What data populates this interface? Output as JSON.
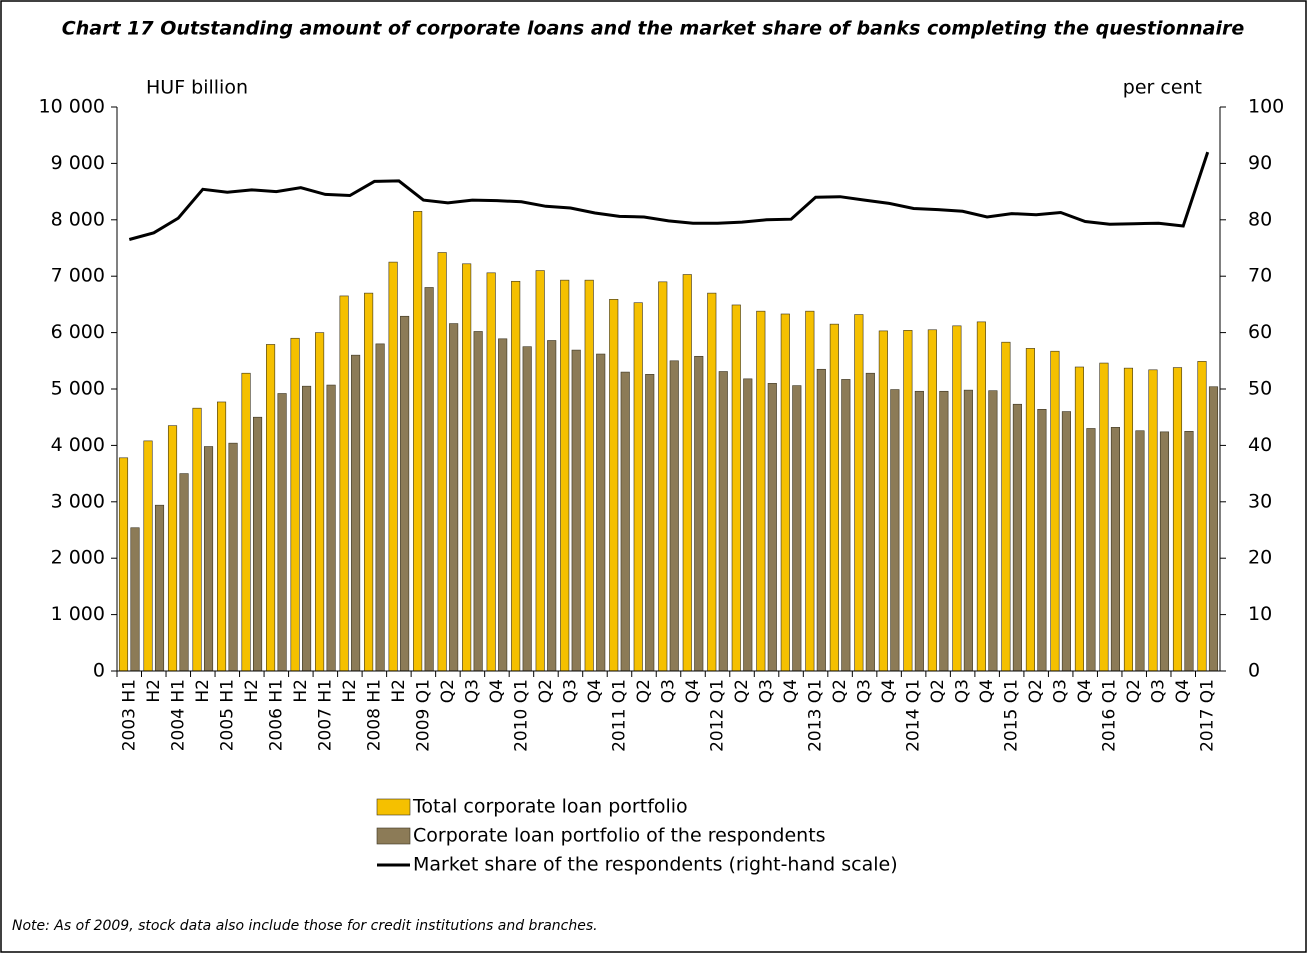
{
  "chart_data": {
    "type": "bar",
    "title": "Chart 17 Outstanding amount of corporate loans and the market share of banks completing the questionnaire",
    "y_label": "HUF billion",
    "y2_label": "per cent",
    "note": "Note: As of 2009, stock data also include those for credit institutions and branches.",
    "categories": [
      "2003 H1",
      "H2",
      "2004 H1",
      "H2",
      "2005 H1",
      "H2",
      "2006 H1",
      "H2",
      "2007 H1",
      "H2",
      "2008 H1",
      "H2",
      "2009 Q1",
      "Q2",
      "Q3",
      "Q4",
      "2010 Q1",
      "Q2",
      "Q3",
      "Q4",
      "2011 Q1",
      "Q2",
      "Q3",
      "Q4",
      "2012 Q1",
      "Q2",
      "Q3",
      "Q4",
      "2013 Q1",
      "Q2",
      "Q3",
      "Q4",
      "2014 Q1",
      "Q2",
      "Q3",
      "Q4",
      "2015 Q1",
      "Q2",
      "Q3",
      "Q4",
      "2016 Q1",
      "Q2",
      "Q3",
      "Q4",
      "2017 Q1"
    ],
    "series": [
      {
        "name": "Total corporate loan portfolio",
        "type": "bar",
        "color": "#f5c000",
        "values": [
          3780,
          4080,
          4350,
          4660,
          4770,
          5280,
          5790,
          5900,
          6000,
          6650,
          6700,
          7250,
          8150,
          7420,
          7220,
          7060,
          6910,
          7100,
          6930,
          6930,
          6590,
          6530,
          6900,
          7030,
          6700,
          6490,
          6380,
          6330,
          6380,
          6150,
          6320,
          6030,
          6040,
          6050,
          6120,
          6190,
          5830,
          5720,
          5670,
          5390,
          5460,
          5370,
          5340,
          5380,
          5490
        ]
      },
      {
        "name": "Corporate loan portfolio of the respondents",
        "type": "bar",
        "color": "#8c7b57",
        "values": [
          2540,
          2940,
          3500,
          3980,
          4040,
          4500,
          4920,
          5050,
          5070,
          5600,
          5800,
          6290,
          6800,
          6160,
          6020,
          5890,
          5750,
          5860,
          5690,
          5620,
          5300,
          5260,
          5500,
          5580,
          5310,
          5180,
          5100,
          5060,
          5350,
          5170,
          5280,
          4990,
          4960,
          4960,
          4980,
          4970,
          4730,
          4640,
          4600,
          4300,
          4320,
          4260,
          4240,
          4250,
          5040
        ]
      },
      {
        "name": "Market share of the respondents (right-hand scale)",
        "type": "line",
        "axis": "y2",
        "color": "#000000",
        "values": [
          76.5,
          77.7,
          80.3,
          85.4,
          84.9,
          85.3,
          85.0,
          85.7,
          84.5,
          84.3,
          86.8,
          86.9,
          83.5,
          83.0,
          83.5,
          83.4,
          83.2,
          82.4,
          82.1,
          81.2,
          80.6,
          80.5,
          79.8,
          79.4,
          79.4,
          79.6,
          80.0,
          80.1,
          84.0,
          84.1,
          83.5,
          82.9,
          82.0,
          81.8,
          81.5,
          80.5,
          81.1,
          80.9,
          81.3,
          79.7,
          79.2,
          79.3,
          79.4,
          78.9,
          92.0
        ]
      }
    ],
    "ylim": [
      0,
      10000
    ],
    "yticks": [
      0,
      {
        "value": 1000,
        "label": "1 000"
      },
      {
        "value": 2000,
        "label": "2 000"
      },
      {
        "value": 3000,
        "label": "3 000"
      },
      {
        "value": 4000,
        "label": "4 000"
      },
      {
        "value": 5000,
        "label": "5 000"
      },
      {
        "value": 6000,
        "label": "6 000"
      },
      {
        "value": 7000,
        "label": "7 000"
      },
      {
        "value": 8000,
        "label": "8 000"
      },
      {
        "value": 9000,
        "label": "9 000"
      },
      {
        "value": 10000,
        "label": "10 000"
      }
    ],
    "y2lim": [
      0,
      100
    ],
    "y2ticks": [
      0,
      10,
      20,
      30,
      40,
      50,
      60,
      70,
      80,
      90,
      100
    ]
  }
}
